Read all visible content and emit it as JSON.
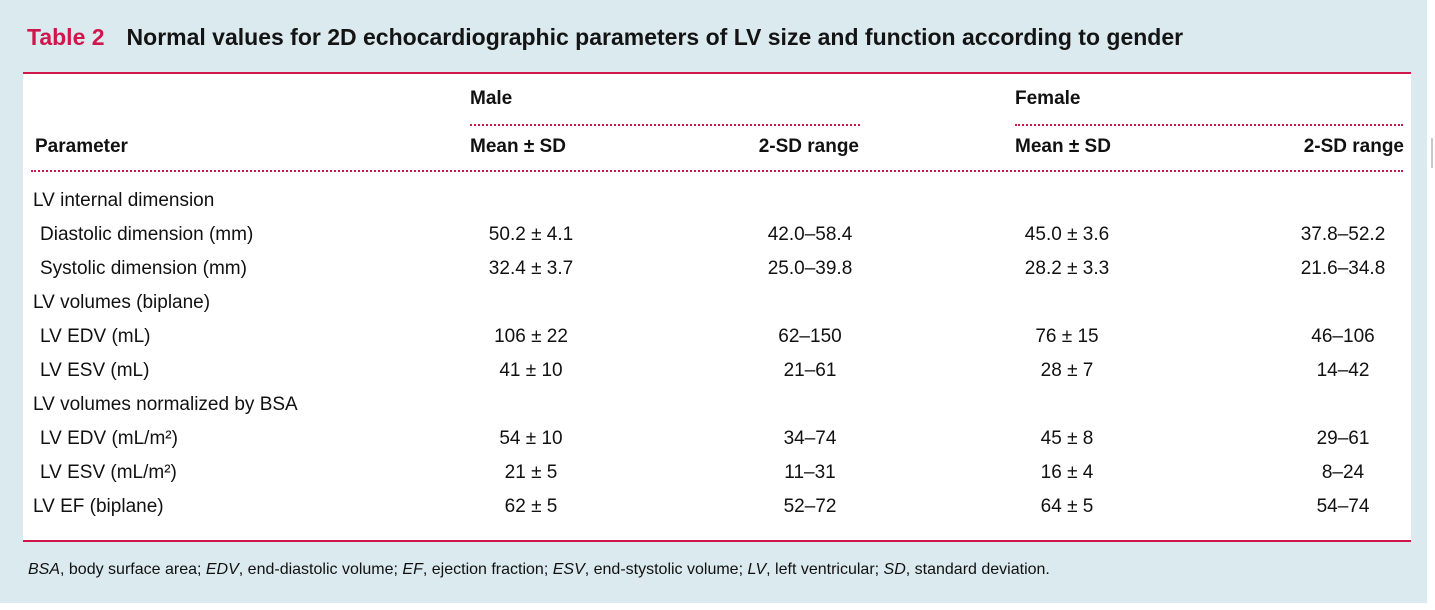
{
  "table": {
    "label": "Table 2",
    "title": "Normal values for 2D echocardiographic parameters of LV size and function according to gender",
    "group_male": "Male",
    "group_female": "Female",
    "col_parameter": "Parameter",
    "col_mean_male": "Mean ± SD",
    "col_range_male": "2-SD range",
    "col_mean_female": "Mean ± SD",
    "col_range_female": "2-SD range",
    "rows": [
      {
        "param": "LV internal dimension",
        "indent": false,
        "mean_m": "",
        "range_m": "",
        "mean_f": "",
        "range_f": ""
      },
      {
        "param": "Diastolic dimension (mm)",
        "indent": true,
        "mean_m": "50.2 ± 4.1",
        "range_m": "42.0–58.4",
        "mean_f": "45.0 ± 3.6",
        "range_f": "37.8–52.2"
      },
      {
        "param": "Systolic dimension (mm)",
        "indent": true,
        "mean_m": "32.4 ± 3.7",
        "range_m": "25.0–39.8",
        "mean_f": "28.2 ± 3.3",
        "range_f": "21.6–34.8"
      },
      {
        "param": "LV volumes (biplane)",
        "indent": false,
        "mean_m": "",
        "range_m": "",
        "mean_f": "",
        "range_f": ""
      },
      {
        "param": "LV EDV (mL)",
        "indent": true,
        "mean_m": "106 ± 22",
        "range_m": "62–150",
        "mean_f": "76 ± 15",
        "range_f": "46–106"
      },
      {
        "param": "LV ESV (mL)",
        "indent": true,
        "mean_m": "41 ± 10",
        "range_m": "21–61",
        "mean_f": "28 ± 7",
        "range_f": "14–42"
      },
      {
        "param": "LV volumes normalized by BSA",
        "indent": false,
        "mean_m": "",
        "range_m": "",
        "mean_f": "",
        "range_f": ""
      },
      {
        "param": "LV EDV (mL/m²)",
        "indent": true,
        "mean_m": "54 ± 10",
        "range_m": "34–74",
        "mean_f": "45 ± 8",
        "range_f": "29–61"
      },
      {
        "param": "LV ESV (mL/m²)",
        "indent": true,
        "mean_m": "21 ± 5",
        "range_m": "11–31",
        "mean_f": "16 ± 4",
        "range_f": "8–24"
      },
      {
        "param": "LV EF (biplane)",
        "indent": false,
        "mean_m": "62 ± 5",
        "range_m": "52–72",
        "mean_f": "64 ± 5",
        "range_f": "54–74"
      }
    ]
  },
  "footnote": {
    "parts": [
      {
        "abbr": "BSA",
        "text": ", body surface area; "
      },
      {
        "abbr": "EDV",
        "text": ", end-diastolic volume; "
      },
      {
        "abbr": "EF",
        "text": ", ejection fraction; "
      },
      {
        "abbr": "ESV",
        "text": ", end-stystolic volume; "
      },
      {
        "abbr": "LV",
        "text": ", left ventricular; "
      },
      {
        "abbr": "SD",
        "text": ", standard deviation."
      }
    ]
  }
}
